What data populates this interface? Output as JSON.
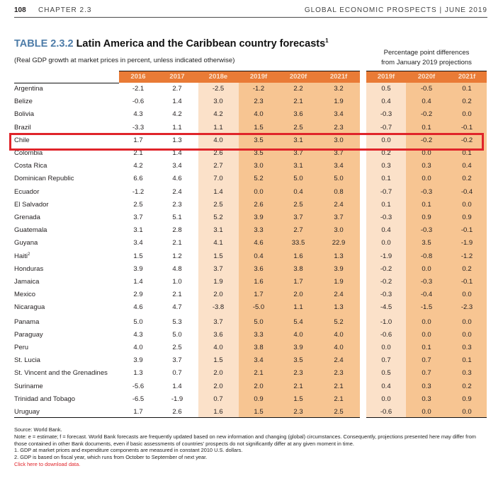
{
  "running_head": {
    "page_number": "108",
    "chapter": "CHAPTER 2.3",
    "publication": "GLOBAL ECONOMIC PROSPECTS | JUNE 2019"
  },
  "table": {
    "number": "TABLE 2.3.2",
    "title": "Latin America and the Caribbean country forecasts",
    "title_footnote": "1",
    "subtitle": "(Real GDP growth at market prices in percent, unless indicated otherwise)",
    "diff_header_line1": "Percentage point differences",
    "diff_header_line2": "from January 2019 projections",
    "columns": [
      "2016",
      "2017",
      "2018e",
      "2019f",
      "2020f",
      "2021f"
    ],
    "diff_columns": [
      "2019f",
      "2020f",
      "2021f"
    ],
    "highlighted_row": "Chile",
    "highlight_color": "#e0242a",
    "header_color": "#e97b36",
    "rows": [
      {
        "country": "Argentina",
        "values": [
          "-2.1",
          "2.7",
          "-2.5",
          "-1.2",
          "2.2",
          "3.2"
        ],
        "diffs": [
          "0.5",
          "-0.5",
          "0.1"
        ]
      },
      {
        "country": "Belize",
        "values": [
          "-0.6",
          "1.4",
          "3.0",
          "2.3",
          "2.1",
          "1.9"
        ],
        "diffs": [
          "0.4",
          "0.4",
          "0.2"
        ]
      },
      {
        "country": "Bolivia",
        "values": [
          "4.3",
          "4.2",
          "4.2",
          "4.0",
          "3.6",
          "3.4"
        ],
        "diffs": [
          "-0.3",
          "-0.2",
          "0.0"
        ]
      },
      {
        "country": "Brazil",
        "values": [
          "-3.3",
          "1.1",
          "1.1",
          "1.5",
          "2.5",
          "2.3"
        ],
        "diffs": [
          "-0.7",
          "0.1",
          "-0.1"
        ]
      },
      {
        "country": "Chile",
        "values": [
          "1.7",
          "1.3",
          "4.0",
          "3.5",
          "3.1",
          "3.0"
        ],
        "diffs": [
          "0.0",
          "-0.2",
          "-0.2"
        ]
      },
      {
        "country": "Colombia",
        "values": [
          "2.1",
          "1.4",
          "2.6",
          "3.5",
          "3.7",
          "3.7"
        ],
        "diffs": [
          "0.2",
          "0.0",
          "0.1"
        ]
      },
      {
        "country": "Costa Rica",
        "values": [
          "4.2",
          "3.4",
          "2.7",
          "3.0",
          "3.1",
          "3.4"
        ],
        "diffs": [
          "0.3",
          "0.3",
          "0.4"
        ]
      },
      {
        "country": "Dominican Republic",
        "values": [
          "6.6",
          "4.6",
          "7.0",
          "5.2",
          "5.0",
          "5.0"
        ],
        "diffs": [
          "0.1",
          "0.0",
          "0.2"
        ]
      },
      {
        "country": "Ecuador",
        "values": [
          "-1.2",
          "2.4",
          "1.4",
          "0.0",
          "0.4",
          "0.8"
        ],
        "diffs": [
          "-0.7",
          "-0.3",
          "-0.4"
        ]
      },
      {
        "country": "El Salvador",
        "values": [
          "2.5",
          "2.3",
          "2.5",
          "2.6",
          "2.5",
          "2.4"
        ],
        "diffs": [
          "0.1",
          "0.1",
          "0.0"
        ]
      },
      {
        "country": "Grenada",
        "values": [
          "3.7",
          "5.1",
          "5.2",
          "3.9",
          "3.7",
          "3.7"
        ],
        "diffs": [
          "-0.3",
          "0.9",
          "0.9"
        ]
      },
      {
        "country": "Guatemala",
        "values": [
          "3.1",
          "2.8",
          "3.1",
          "3.3",
          "2.7",
          "3.0"
        ],
        "diffs": [
          "0.4",
          "-0.3",
          "-0.1"
        ]
      },
      {
        "country": "Guyana",
        "values": [
          "3.4",
          "2.1",
          "4.1",
          "4.6",
          "33.5",
          "22.9"
        ],
        "diffs": [
          "0.0",
          "3.5",
          "-1.9"
        ]
      },
      {
        "country": "Haiti",
        "footnote": "2",
        "values": [
          "1.5",
          "1.2",
          "1.5",
          "0.4",
          "1.6",
          "1.3"
        ],
        "diffs": [
          "-1.9",
          "-0.8",
          "-1.2"
        ]
      },
      {
        "country": "Honduras",
        "values": [
          "3.9",
          "4.8",
          "3.7",
          "3.6",
          "3.8",
          "3.9"
        ],
        "diffs": [
          "-0.2",
          "0.0",
          "0.2"
        ]
      },
      {
        "country": "Jamaica",
        "values": [
          "1.4",
          "1.0",
          "1.9",
          "1.6",
          "1.7",
          "1.9"
        ],
        "diffs": [
          "-0.2",
          "-0.3",
          "-0.1"
        ]
      },
      {
        "country": "Mexico",
        "values": [
          "2.9",
          "2.1",
          "2.0",
          "1.7",
          "2.0",
          "2.4"
        ],
        "diffs": [
          "-0.3",
          "-0.4",
          "0.0"
        ]
      },
      {
        "country": "Nicaragua",
        "values": [
          "4.6",
          "4.7",
          "-3.8",
          "-5.0",
          "1.1",
          "1.3"
        ],
        "diffs": [
          "-4.5",
          "-1.5",
          "-2.3"
        ]
      },
      {
        "country": "Panama",
        "values": [
          "5.0",
          "5.3",
          "3.7",
          "5.0",
          "5.4",
          "5.2"
        ],
        "diffs": [
          "-1.0",
          "0.0",
          "0.0"
        ]
      },
      {
        "country": "Paraguay",
        "values": [
          "4.3",
          "5.0",
          "3.6",
          "3.3",
          "4.0",
          "4.0"
        ],
        "diffs": [
          "-0.6",
          "0.0",
          "0.0"
        ]
      },
      {
        "country": "Peru",
        "values": [
          "4.0",
          "2.5",
          "4.0",
          "3.8",
          "3.9",
          "4.0"
        ],
        "diffs": [
          "0.0",
          "0.1",
          "0.3"
        ]
      },
      {
        "country": "St. Lucia",
        "values": [
          "3.9",
          "3.7",
          "1.5",
          "3.4",
          "3.5",
          "2.4"
        ],
        "diffs": [
          "0.7",
          "0.7",
          "0.1"
        ]
      },
      {
        "country": "St. Vincent and the Grenadines",
        "values": [
          "1.3",
          "0.7",
          "2.0",
          "2.1",
          "2.3",
          "2.3"
        ],
        "diffs": [
          "0.5",
          "0.7",
          "0.3"
        ]
      },
      {
        "country": "Suriname",
        "values": [
          "-5.6",
          "1.4",
          "2.0",
          "2.0",
          "2.1",
          "2.1"
        ],
        "diffs": [
          "0.4",
          "0.3",
          "0.2"
        ]
      },
      {
        "country": "Trinidad and Tobago",
        "values": [
          "-6.5",
          "-1.9",
          "0.7",
          "0.9",
          "1.5",
          "2.1"
        ],
        "diffs": [
          "0.0",
          "0.3",
          "0.9"
        ]
      },
      {
        "country": "Uruguay",
        "values": [
          "1.7",
          "2.6",
          "1.6",
          "1.5",
          "2.3",
          "2.5"
        ],
        "diffs": [
          "-0.6",
          "0.0",
          "0.0"
        ]
      }
    ]
  },
  "notes": {
    "source": "Source: World Bank.",
    "note": "Note: e = estimate; f = forecast.  World Bank forecasts are frequently updated based on new information and changing (global) circumstances. Consequently, projections presented here may differ from those contained in other Bank documents, even if basic assessments of countries' prospects do not significantly differ at any given moment in time.",
    "footnote1": "1. GDP at market prices and expenditure components are measured in constant 2010 U.S. dollars.",
    "footnote2": "2. GDP is based on fiscal year, which runs from October to September of next year.",
    "download_link": "Click here to download data."
  }
}
